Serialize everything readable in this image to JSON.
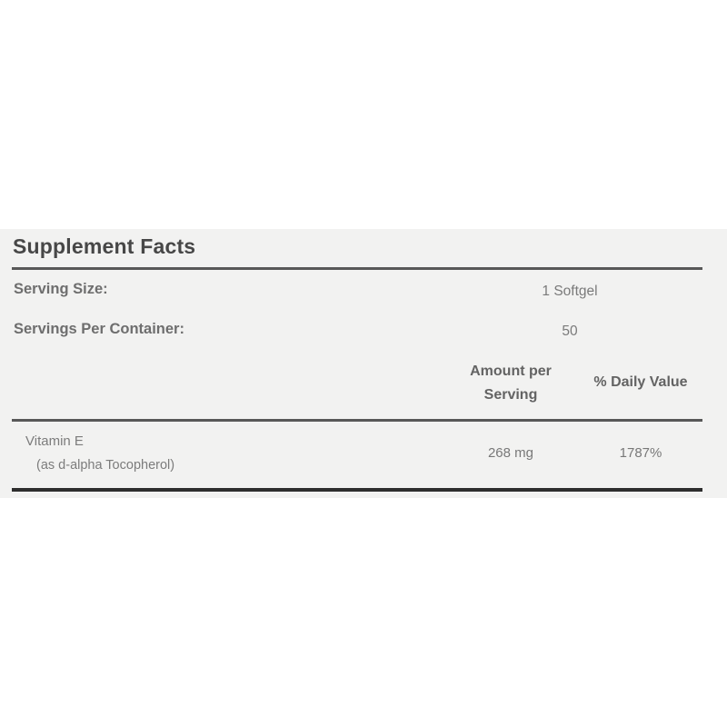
{
  "label": {
    "title": "Supplement Facts",
    "serving_size": {
      "label": "Serving Size:",
      "value": "1 Softgel"
    },
    "servings_per_container": {
      "label": "Servings Per Container:",
      "value": "50"
    },
    "columns": {
      "amount": "Amount per Serving",
      "daily_value": "% Daily Value"
    },
    "rows": [
      {
        "name": "Vitamin E",
        "detail": "(as d-alpha Tocopherol)",
        "amount": "268 mg",
        "daily_value": "1787%"
      }
    ],
    "colors": {
      "panel_background": "#f2f2f1",
      "page_background": "#ffffff",
      "title_text": "#474747",
      "body_text": "#7a7a7a",
      "rule_gray": "#585858",
      "rule_black": "#2e2e2e"
    }
  }
}
